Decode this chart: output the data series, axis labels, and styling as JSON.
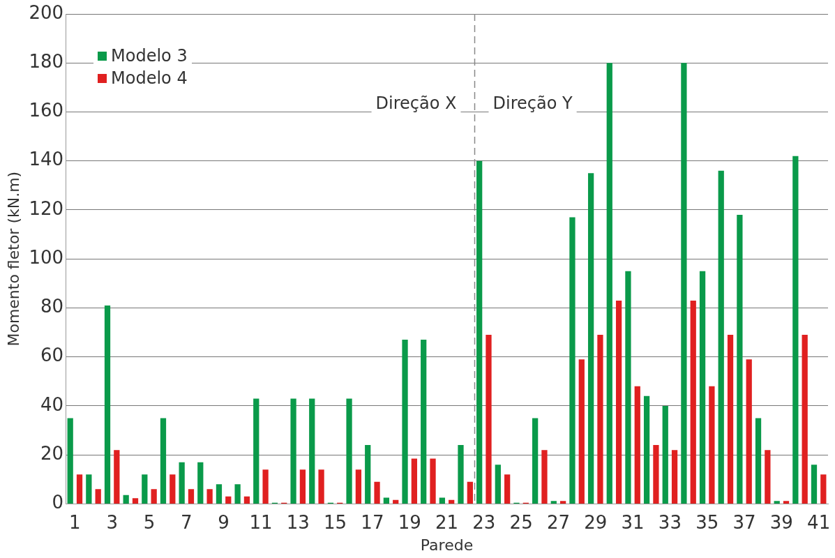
{
  "chart_data": {
    "type": "bar",
    "xlabel": "Parede",
    "ylabel": "Momento fletor (kN.m)",
    "x": [
      1,
      2,
      3,
      4,
      5,
      6,
      7,
      8,
      9,
      10,
      11,
      12,
      13,
      14,
      15,
      16,
      17,
      18,
      19,
      20,
      21,
      22,
      23,
      24,
      25,
      26,
      27,
      28,
      29,
      30,
      31,
      32,
      33,
      34,
      35,
      36,
      37,
      38,
      39,
      40,
      41
    ],
    "xlim": [
      0.5,
      41.5
    ],
    "xticks": [
      1,
      3,
      5,
      7,
      9,
      11,
      13,
      15,
      17,
      19,
      21,
      23,
      25,
      27,
      29,
      31,
      33,
      35,
      37,
      39,
      41
    ],
    "ylim": [
      0,
      200
    ],
    "yticks": [
      0,
      20,
      40,
      60,
      80,
      100,
      120,
      140,
      160,
      180,
      200
    ],
    "series": [
      {
        "name": "Modelo 3",
        "color": "#0a9a4a",
        "values": [
          35,
          12,
          81,
          3.6,
          12,
          35,
          17,
          17,
          8,
          8,
          43,
          0.5,
          43,
          43,
          0.5,
          43,
          24,
          2.5,
          67,
          67,
          2.5,
          24,
          140,
          16,
          0.5,
          35,
          1.2,
          117,
          135,
          180,
          95,
          44,
          40,
          180,
          95,
          136,
          118,
          35,
          1.2,
          142,
          16
        ]
      },
      {
        "name": "Modelo 4",
        "color": "#e02020",
        "values": [
          12,
          6,
          22,
          2.3,
          6,
          12,
          6,
          6,
          3,
          3,
          14,
          0.5,
          14,
          14,
          0.5,
          14,
          9,
          1.6,
          18.5,
          18.5,
          1.6,
          9,
          69,
          12,
          0.5,
          22,
          1.2,
          59,
          69,
          83,
          48,
          24,
          22,
          83,
          48,
          69,
          59,
          22,
          1.2,
          69,
          12
        ]
      }
    ],
    "ref_lines": [
      {
        "axis": "x",
        "value": 22.5,
        "line_style": "dashed",
        "color": "#888888"
      }
    ],
    "annotations": [
      "Direção X",
      "Direção Y"
    ],
    "grid": "y",
    "legend": "top left"
  }
}
